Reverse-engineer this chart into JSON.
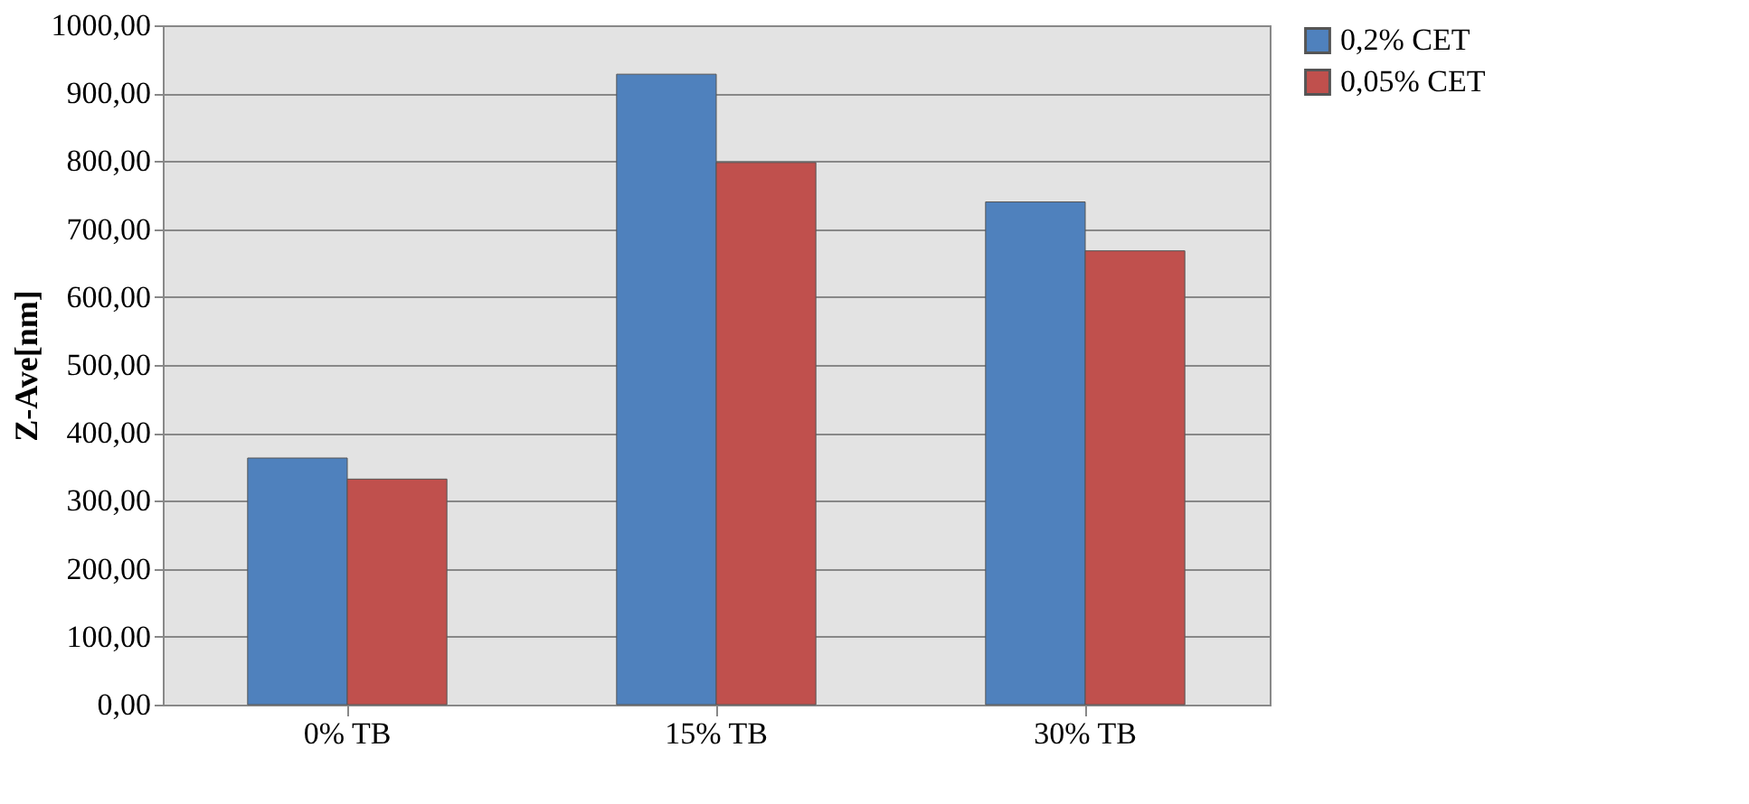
{
  "chart_data": {
    "type": "bar",
    "ylabel": "Z-Ave[nm]",
    "categories": [
      "0% TB",
      "15% TB",
      "30% TB"
    ],
    "series": [
      {
        "name": "0,2% CET",
        "color": "#4f81bd",
        "values": [
          363,
          928,
          740
        ]
      },
      {
        "name": "0,05% CET",
        "color": "#c0504d",
        "values": [
          332,
          798,
          668
        ]
      }
    ],
    "ylim": [
      0,
      1000
    ],
    "yticks": [
      {
        "value": 0,
        "label": "0,00"
      },
      {
        "value": 100,
        "label": "100,00"
      },
      {
        "value": 200,
        "label": "200,00"
      },
      {
        "value": 300,
        "label": "300,00"
      },
      {
        "value": 400,
        "label": "400,00"
      },
      {
        "value": 500,
        "label": "500,00"
      },
      {
        "value": 600,
        "label": "600,00"
      },
      {
        "value": 700,
        "label": "700,00"
      },
      {
        "value": 800,
        "label": "800,00"
      },
      {
        "value": 900,
        "label": "900,00"
      },
      {
        "value": 1000,
        "label": "1000,00"
      }
    ],
    "grid": "y",
    "legend": "right"
  }
}
